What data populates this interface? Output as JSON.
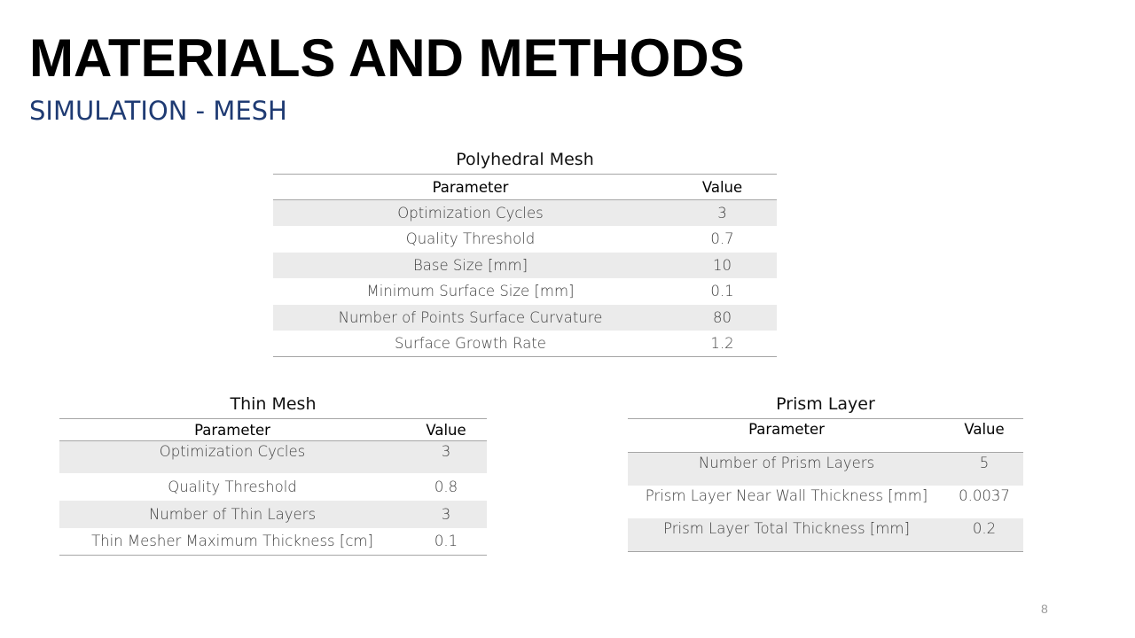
{
  "slide": {
    "title": "MATERIALS AND METHODS",
    "subtitle": "SIMULATION - MESH",
    "page_number": "8"
  },
  "tables": {
    "polyhedral": {
      "title": "Polyhedral Mesh",
      "headers": [
        "Parameter",
        "Value"
      ],
      "rows": [
        [
          "Optimization Cycles",
          "3"
        ],
        [
          "Quality Threshold",
          "0.7"
        ],
        [
          "Base Size [mm]",
          "10"
        ],
        [
          "Minimum Surface Size [mm]",
          "0.1"
        ],
        [
          "Number of Points Surface Curvature",
          "80"
        ],
        [
          "Surface Growth Rate",
          "1.2"
        ]
      ]
    },
    "thin": {
      "title": "Thin Mesh",
      "headers": [
        "Parameter",
        "Value"
      ],
      "rows": [
        [
          "Optimization Cycles",
          "3"
        ],
        [
          "Quality Threshold",
          "0.8"
        ],
        [
          "Number of Thin Layers",
          "3"
        ],
        [
          "Thin Mesher Maximum Thickness [cm]",
          "0.1"
        ]
      ]
    },
    "prism": {
      "title": "Prism Layer",
      "headers": [
        "Parameter",
        "Value"
      ],
      "rows": [
        [
          "Number of Prism Layers",
          "5"
        ],
        [
          "Prism Layer Near Wall Thickness [mm]",
          "0.0037"
        ],
        [
          "Prism Layer Total Thickness [mm]",
          "0.2"
        ]
      ]
    }
  }
}
